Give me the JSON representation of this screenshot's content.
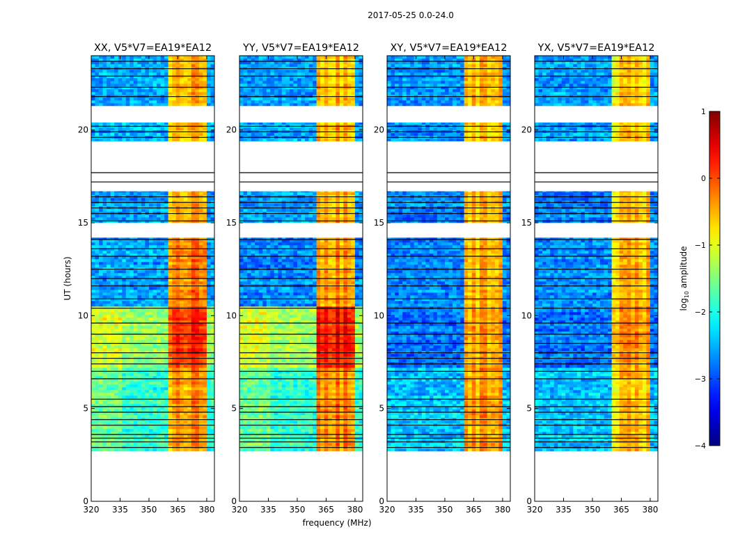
{
  "chart_data": {
    "type": "heatmap",
    "title": "2017-05-25 0.0-24.0",
    "xlabel": "frequency (MHz)",
    "ylabel": "UT (hours)",
    "xlim": [
      320,
      384
    ],
    "ylim": [
      0,
      24
    ],
    "xticks": [
      "320",
      "335",
      "350",
      "365",
      "380"
    ],
    "xtick_values": [
      320,
      335,
      350,
      365,
      380
    ],
    "yticks": [
      "0",
      "5",
      "10",
      "15",
      "20"
    ],
    "ytick_values": [
      0,
      5,
      10,
      15,
      20
    ],
    "colorbar": {
      "label_main": "log",
      "label_sub": "10",
      "label_rest": " amplitude",
      "range": [
        -4,
        1
      ],
      "ticks": [
        "1",
        "0",
        "−1",
        "−2",
        "−3",
        "−4"
      ],
      "tick_values": [
        1,
        0,
        -1,
        -2,
        -3,
        -4
      ],
      "colormap": "jet"
    },
    "rfi_band_mhz": [
      360,
      380
    ],
    "panels": [
      {
        "title": "XX, V5*V7=EA19*EA12",
        "segments": [
          {
            "t": [
              2.7,
              7.2
            ],
            "bg": -1.9,
            "rfi": -0.4
          },
          {
            "t": [
              7.2,
              10.5
            ],
            "bg": -1.35,
            "rfi": 0.15
          },
          {
            "t": [
              10.5,
              14.2
            ],
            "bg": -2.6,
            "rfi": -0.3
          },
          {
            "t": [
              15.0,
              16.7
            ],
            "bg": -2.6,
            "rfi": -0.5
          },
          {
            "t": [
              19.4,
              20.4
            ],
            "bg": -2.5,
            "rfi": -0.6
          },
          {
            "t": [
              21.3,
              24.0
            ],
            "bg": -2.6,
            "rfi": -0.6
          }
        ]
      },
      {
        "title": "YY, V5*V7=EA19*EA12",
        "segments": [
          {
            "t": [
              2.7,
              7.2
            ],
            "bg": -1.9,
            "rfi": -0.3
          },
          {
            "t": [
              7.2,
              10.5
            ],
            "bg": -1.35,
            "rfi": 0.25
          },
          {
            "t": [
              10.5,
              14.2
            ],
            "bg": -2.7,
            "rfi": -0.4
          },
          {
            "t": [
              15.0,
              16.7
            ],
            "bg": -2.6,
            "rfi": -0.5
          },
          {
            "t": [
              19.4,
              20.4
            ],
            "bg": -2.5,
            "rfi": -0.5
          },
          {
            "t": [
              21.3,
              24.0
            ],
            "bg": -2.6,
            "rfi": -0.6
          }
        ]
      },
      {
        "title": "XY, V5*V7=EA19*EA12",
        "segments": [
          {
            "t": [
              2.7,
              7.2
            ],
            "bg": -2.4,
            "rfi": -0.4
          },
          {
            "t": [
              7.2,
              10.5
            ],
            "bg": -2.8,
            "rfi": -0.4
          },
          {
            "t": [
              10.5,
              14.2
            ],
            "bg": -2.7,
            "rfi": -0.5
          },
          {
            "t": [
              15.0,
              16.7
            ],
            "bg": -2.7,
            "rfi": -0.5
          },
          {
            "t": [
              19.4,
              20.4
            ],
            "bg": -2.6,
            "rfi": -0.6
          },
          {
            "t": [
              21.3,
              24.0
            ],
            "bg": -2.6,
            "rfi": -0.5
          }
        ]
      },
      {
        "title": "YX, V5*V7=EA19*EA12",
        "segments": [
          {
            "t": [
              2.7,
              7.2
            ],
            "bg": -2.4,
            "rfi": -0.6
          },
          {
            "t": [
              7.2,
              10.5
            ],
            "bg": -2.8,
            "rfi": -0.4
          },
          {
            "t": [
              10.5,
              14.2
            ],
            "bg": -2.7,
            "rfi": -0.6
          },
          {
            "t": [
              15.0,
              16.7
            ],
            "bg": -2.7,
            "rfi": -0.6
          },
          {
            "t": [
              19.4,
              20.4
            ],
            "bg": -2.6,
            "rfi": -0.7
          },
          {
            "t": [
              21.3,
              24.0
            ],
            "bg": -2.6,
            "rfi": -0.7
          }
        ]
      }
    ],
    "flagged_lines_ut": [
      2.9,
      3.2,
      3.4,
      3.6,
      4.1,
      4.4,
      4.8,
      5.1,
      5.5,
      6.6,
      7.0,
      7.4,
      7.7,
      8.0,
      8.5,
      9.0,
      9.6,
      10.4,
      10.9,
      11.6,
      12.0,
      12.5,
      13.2,
      13.6,
      14.1,
      15.1,
      15.5,
      15.8,
      16.1,
      16.4,
      17.2,
      17.7,
      19.6,
      19.9,
      20.2,
      21.8,
      22.3,
      22.9,
      23.3,
      23.7
    ]
  }
}
